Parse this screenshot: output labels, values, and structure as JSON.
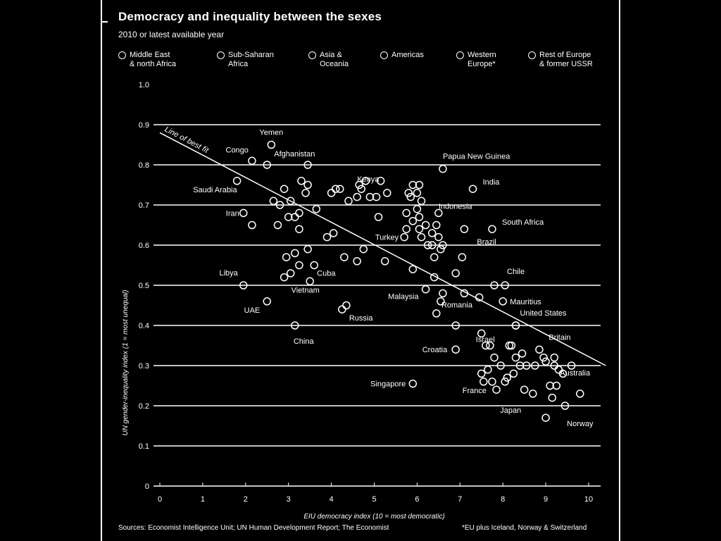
{
  "title": "Democracy and inequality between the sexes",
  "subtitle": "2010 or latest available year",
  "legend": [
    {
      "label": "Middle East\n& north Africa"
    },
    {
      "label": "Sub-Saharan\nAfrica"
    },
    {
      "label": "Asia &\nOceania"
    },
    {
      "label": "Americas"
    },
    {
      "label": "Western\nEurope*"
    },
    {
      "label": "Rest of Europe\n& former USSR"
    }
  ],
  "source": "Sources: Economist Intelligence Unit; UN Human Development Report; The Economist",
  "footnote": "*EU plus Iceland, Norway & Switzerland",
  "chart_data": {
    "type": "scatter",
    "xlabel": "EIU democracy index (10 = most democratic)",
    "ylabel": "UN gender-inequality index (1 = most unequal)",
    "xlim": [
      0,
      10
    ],
    "ylim": [
      0,
      1.0
    ],
    "x_ticks": [
      "0",
      "1",
      "2",
      "3",
      "4",
      "5",
      "6",
      "7",
      "8",
      "9",
      "10"
    ],
    "y_ticks": [
      "0",
      "0.1",
      "0.2",
      "0.3",
      "0.4",
      "0.5",
      "0.6",
      "0.7",
      "0.8",
      "0.9",
      "1.0"
    ],
    "grid": true,
    "fit_line": {
      "label": "Line of best fit",
      "points": [
        [
          0,
          0.88
        ],
        [
          10.4,
          0.3
        ]
      ]
    },
    "labelled_points": [
      {
        "name": "Yemen",
        "x": 2.6,
        "y": 0.85
      },
      {
        "name": "Congo",
        "x": 2.15,
        "y": 0.81
      },
      {
        "name": "Afghanistan",
        "x": 2.5,
        "y": 0.8
      },
      {
        "name": "Kenya",
        "x": 4.7,
        "y": 0.74
      },
      {
        "name": "Papua New Guinea",
        "x": 6.6,
        "y": 0.79
      },
      {
        "name": "India",
        "x": 7.3,
        "y": 0.74
      },
      {
        "name": "Saudi Arabia",
        "x": 1.8,
        "y": 0.76
      },
      {
        "name": "Indonesia",
        "x": 6.5,
        "y": 0.68
      },
      {
        "name": "Iran",
        "x": 1.95,
        "y": 0.68
      },
      {
        "name": "South Africa",
        "x": 7.75,
        "y": 0.64
      },
      {
        "name": "Turkey",
        "x": 5.7,
        "y": 0.62
      },
      {
        "name": "Brazil",
        "x": 7.1,
        "y": 0.64
      },
      {
        "name": "Libya",
        "x": 1.95,
        "y": 0.5
      },
      {
        "name": "Chile",
        "x": 7.8,
        "y": 0.5
      },
      {
        "name": "Cuba",
        "x": 3.5,
        "y": 0.51
      },
      {
        "name": "Malaysia",
        "x": 6.2,
        "y": 0.49
      },
      {
        "name": "Mauritius",
        "x": 8.0,
        "y": 0.46
      },
      {
        "name": "Vietnam",
        "x": 2.9,
        "y": 0.52
      },
      {
        "name": "Romania",
        "x": 6.6,
        "y": 0.48
      },
      {
        "name": "UAE",
        "x": 2.5,
        "y": 0.46
      },
      {
        "name": "Russia",
        "x": 4.25,
        "y": 0.44
      },
      {
        "name": "United States",
        "x": 8.3,
        "y": 0.4
      },
      {
        "name": "China",
        "x": 3.15,
        "y": 0.4
      },
      {
        "name": "Israel",
        "x": 7.5,
        "y": 0.38
      },
      {
        "name": "Britain",
        "x": 8.15,
        "y": 0.35
      },
      {
        "name": "Croatia",
        "x": 6.9,
        "y": 0.34
      },
      {
        "name": "Singapore",
        "x": 5.9,
        "y": 0.255
      },
      {
        "name": "Australia",
        "x": 9.2,
        "y": 0.3
      },
      {
        "name": "France",
        "x": 7.75,
        "y": 0.26
      },
      {
        "name": "Japan",
        "x": 8.1,
        "y": 0.27
      },
      {
        "name": "Norway",
        "x": 9.8,
        "y": 0.23
      }
    ],
    "other_points": [
      [
        3.45,
        0.8
      ],
      [
        4.8,
        0.76
      ],
      [
        5.15,
        0.76
      ],
      [
        5.3,
        0.73
      ],
      [
        5.05,
        0.72
      ],
      [
        4.9,
        0.72
      ],
      [
        4.6,
        0.72
      ],
      [
        4.65,
        0.75
      ],
      [
        4.2,
        0.74
      ],
      [
        4.1,
        0.74
      ],
      [
        4.0,
        0.73
      ],
      [
        3.4,
        0.73
      ],
      [
        3.45,
        0.75
      ],
      [
        3.3,
        0.76
      ],
      [
        2.9,
        0.74
      ],
      [
        3.05,
        0.71
      ],
      [
        4.4,
        0.71
      ],
      [
        5.9,
        0.75
      ],
      [
        6.05,
        0.75
      ],
      [
        5.8,
        0.73
      ],
      [
        5.85,
        0.72
      ],
      [
        6.0,
        0.73
      ],
      [
        6.1,
        0.71
      ],
      [
        6.0,
        0.69
      ],
      [
        6.05,
        0.67
      ],
      [
        5.9,
        0.66
      ],
      [
        5.75,
        0.68
      ],
      [
        6.2,
        0.65
      ],
      [
        6.35,
        0.63
      ],
      [
        6.45,
        0.65
      ],
      [
        6.5,
        0.62
      ],
      [
        6.35,
        0.6
      ],
      [
        6.6,
        0.6
      ],
      [
        6.55,
        0.59
      ],
      [
        6.25,
        0.6
      ],
      [
        6.1,
        0.62
      ],
      [
        6.05,
        0.64
      ],
      [
        5.1,
        0.67
      ],
      [
        5.75,
        0.64
      ],
      [
        2.65,
        0.71
      ],
      [
        2.8,
        0.7
      ],
      [
        3.0,
        0.67
      ],
      [
        3.15,
        0.67
      ],
      [
        3.25,
        0.68
      ],
      [
        3.65,
        0.69
      ],
      [
        2.15,
        0.65
      ],
      [
        3.25,
        0.64
      ],
      [
        3.9,
        0.62
      ],
      [
        4.05,
        0.63
      ],
      [
        3.15,
        0.58
      ],
      [
        3.45,
        0.59
      ],
      [
        3.25,
        0.55
      ],
      [
        3.05,
        0.53
      ],
      [
        4.3,
        0.57
      ],
      [
        4.6,
        0.56
      ],
      [
        4.75,
        0.59
      ],
      [
        5.25,
        0.56
      ],
      [
        5.9,
        0.54
      ],
      [
        6.4,
        0.52
      ],
      [
        6.9,
        0.53
      ],
      [
        7.05,
        0.57
      ],
      [
        7.45,
        0.47
      ],
      [
        7.1,
        0.48
      ],
      [
        6.55,
        0.46
      ],
      [
        6.45,
        0.43
      ],
      [
        6.9,
        0.4
      ],
      [
        8.05,
        0.5
      ],
      [
        8.3,
        0.4
      ],
      [
        7.6,
        0.35
      ],
      [
        7.7,
        0.35
      ],
      [
        7.8,
        0.32
      ],
      [
        8.2,
        0.35
      ],
      [
        8.3,
        0.32
      ],
      [
        8.45,
        0.33
      ],
      [
        8.55,
        0.3
      ],
      [
        9.0,
        0.31
      ],
      [
        9.2,
        0.32
      ],
      [
        9.3,
        0.29
      ],
      [
        8.85,
        0.34
      ],
      [
        8.95,
        0.32
      ],
      [
        8.4,
        0.3
      ],
      [
        8.25,
        0.28
      ],
      [
        7.65,
        0.29
      ],
      [
        7.5,
        0.28
      ],
      [
        7.95,
        0.3
      ],
      [
        8.05,
        0.26
      ],
      [
        8.5,
        0.24
      ],
      [
        8.75,
        0.3
      ],
      [
        9.4,
        0.28
      ],
      [
        9.1,
        0.25
      ],
      [
        9.15,
        0.22
      ],
      [
        9.45,
        0.2
      ],
      [
        9.6,
        0.3
      ],
      [
        7.85,
        0.24
      ],
      [
        9.0,
        0.17
      ],
      [
        9.25,
        0.25
      ],
      [
        8.7,
        0.23
      ],
      [
        7.55,
        0.26
      ],
      [
        2.95,
        0.57
      ],
      [
        3.6,
        0.55
      ],
      [
        4.35,
        0.45
      ],
      [
        2.75,
        0.65
      ],
      [
        6.4,
        0.57
      ]
    ]
  }
}
